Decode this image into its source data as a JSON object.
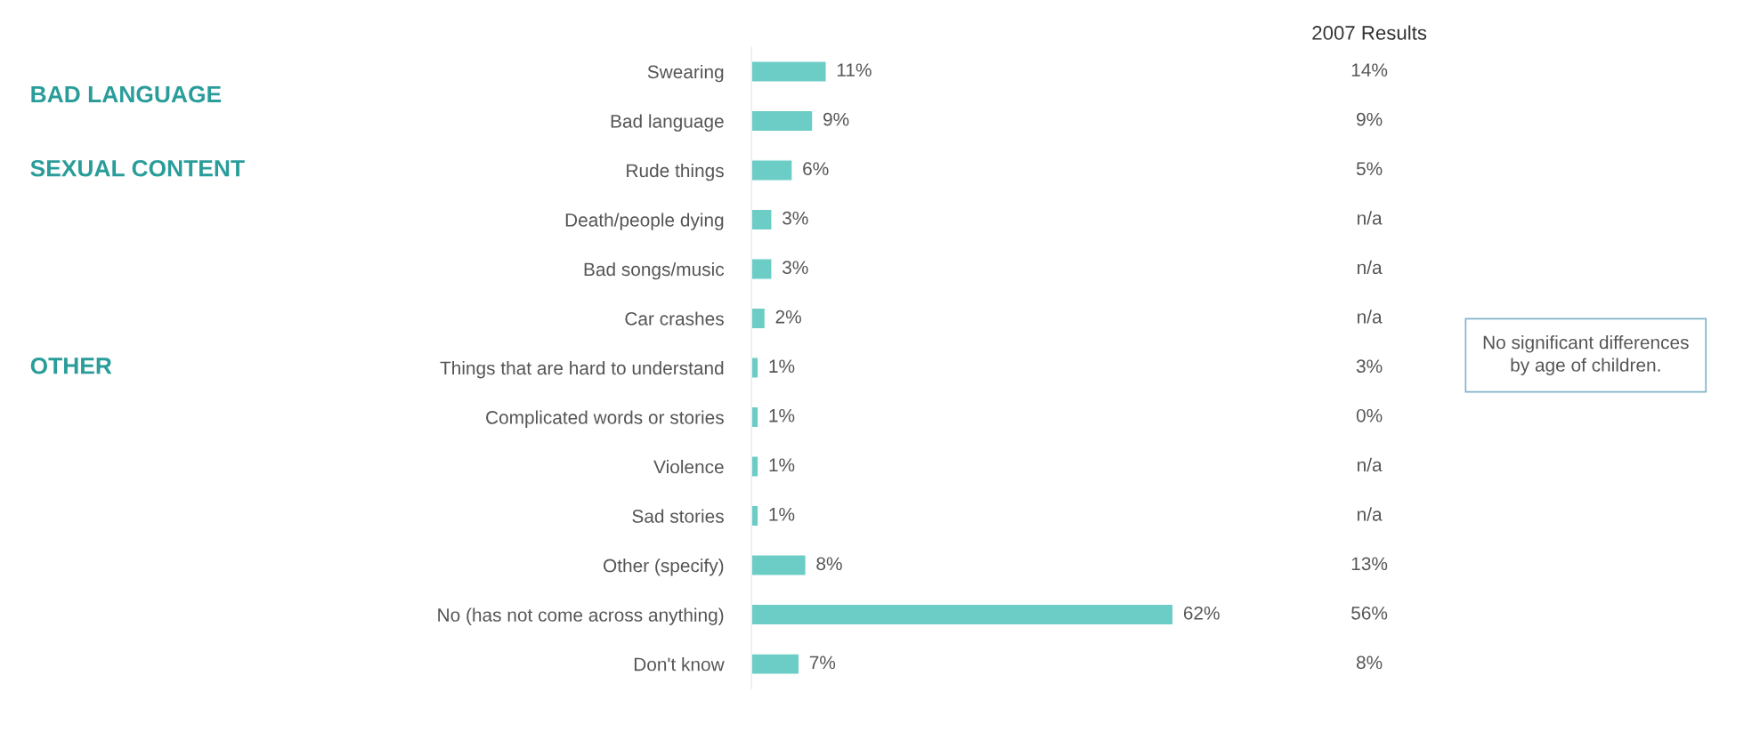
{
  "chart_data": {
    "type": "bar",
    "orientation": "horizontal",
    "categories": [
      "Swearing",
      "Bad language",
      "Rude things",
      "Death/people dying",
      "Bad songs/music",
      "Car crashes",
      "Things that are hard to understand",
      "Complicated words or stories",
      "Violence",
      "Sad stories",
      "Other (specify)",
      "No (has not come across anything)",
      "Don't know"
    ],
    "values": [
      11,
      9,
      6,
      3,
      3,
      2,
      1,
      1,
      1,
      1,
      8,
      62,
      7
    ],
    "value_labels": [
      "11%",
      "9%",
      "6%",
      "3%",
      "3%",
      "2%",
      "1%",
      "1%",
      "1%",
      "1%",
      "8%",
      "62%",
      "7%"
    ],
    "color": "#6ccdc6",
    "tick_labels": "y",
    "annotations": [
      "2007 Results",
      "BAD LANGUAGE",
      "SEXUAL CONTENT",
      "OTHER",
      "No significant differences\nby age of children.",
      "14%",
      "9%",
      "5%",
      "n/a",
      "n/a",
      "n/a",
      "3%",
      "0%",
      "n/a",
      "n/a",
      "13%",
      "56%",
      "8%"
    ]
  }
}
